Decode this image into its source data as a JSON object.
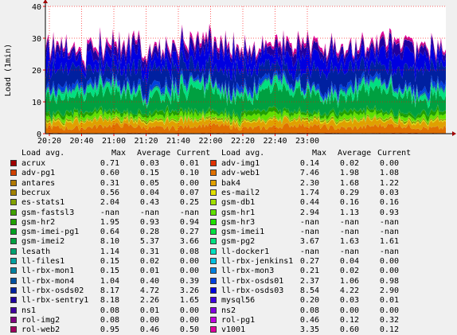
{
  "chart_data": {
    "type": "area",
    "stacked": true,
    "ylabel": "Load (1min)",
    "ylim": [
      0,
      40
    ],
    "yticks": [
      0,
      10,
      20,
      30,
      40
    ],
    "xticks": [
      "20:20",
      "20:40",
      "21:00",
      "21:20",
      "21:40",
      "22:00",
      "22:20",
      "22:40",
      "23:00"
    ],
    "grid": true,
    "legend_placement": "bottom",
    "legend_header": {
      "name": "Load avg.",
      "max": "Max",
      "avg": "Average",
      "cur": "Current"
    },
    "series": [
      {
        "name": "acrux",
        "color": "#a00000",
        "max": "0.71",
        "avg": "0.03",
        "cur": "0.01"
      },
      {
        "name": "adv-img1",
        "color": "#e03000",
        "max": "0.14",
        "avg": "0.02",
        "cur": "0.00"
      },
      {
        "name": "adv-pg1",
        "color": "#d04000",
        "max": "0.60",
        "avg": "0.15",
        "cur": "0.10"
      },
      {
        "name": "adv-web1",
        "color": "#e07000",
        "max": "7.46",
        "avg": "1.98",
        "cur": "1.08"
      },
      {
        "name": "antares",
        "color": "#b07800",
        "max": "0.31",
        "avg": "0.05",
        "cur": "0.00"
      },
      {
        "name": "bak4",
        "color": "#e0a000",
        "max": "2.30",
        "avg": "1.68",
        "cur": "1.22"
      },
      {
        "name": "becrux",
        "color": "#a08000",
        "max": "0.56",
        "avg": "0.04",
        "cur": "0.07"
      },
      {
        "name": "es-mail2",
        "color": "#e0e000",
        "max": "1.74",
        "avg": "0.29",
        "cur": "0.03"
      },
      {
        "name": "es-stats1",
        "color": "#80a000",
        "max": "2.04",
        "avg": "0.43",
        "cur": "0.25"
      },
      {
        "name": "gsm-db1",
        "color": "#a0e000",
        "max": "0.44",
        "avg": "0.16",
        "cur": "0.16"
      },
      {
        "name": "gsm-fastsl3",
        "color": "#40a000",
        "max": "-nan",
        "avg": "-nan",
        "cur": "-nan"
      },
      {
        "name": "gsm-hr1",
        "color": "#60e000",
        "max": "2.94",
        "avg": "1.13",
        "cur": "0.93"
      },
      {
        "name": "gsm-hr2",
        "color": "#20a000",
        "max": "1.95",
        "avg": "0.93",
        "cur": "0.94"
      },
      {
        "name": "gsm-hr3",
        "color": "#20e000",
        "max": "-nan",
        "avg": "-nan",
        "cur": "-nan"
      },
      {
        "name": "gsm-imei-pg1",
        "color": "#00a020",
        "max": "0.64",
        "avg": "0.28",
        "cur": "0.27"
      },
      {
        "name": "gsm-imei1",
        "color": "#00e040",
        "max": "-nan",
        "avg": "-nan",
        "cur": "-nan"
      },
      {
        "name": "gsm-imei2",
        "color": "#00a040",
        "max": "8.10",
        "avg": "5.37",
        "cur": "3.66"
      },
      {
        "name": "gsm-pg2",
        "color": "#00e080",
        "max": "3.67",
        "avg": "1.63",
        "cur": "1.61"
      },
      {
        "name": "lesath",
        "color": "#00a070",
        "max": "1.14",
        "avg": "0.31",
        "cur": "0.08"
      },
      {
        "name": "ll-docker1",
        "color": "#00e0c0",
        "max": "-nan",
        "avg": "-nan",
        "cur": "-nan"
      },
      {
        "name": "ll-files1",
        "color": "#00a0a0",
        "max": "0.15",
        "avg": "0.02",
        "cur": "0.00"
      },
      {
        "name": "ll-rbx-jenkins1",
        "color": "#00c0e0",
        "max": "0.27",
        "avg": "0.04",
        "cur": "0.00"
      },
      {
        "name": "ll-rbx-mon1",
        "color": "#0080a0",
        "max": "0.15",
        "avg": "0.01",
        "cur": "0.00"
      },
      {
        "name": "ll-rbx-mon3",
        "color": "#0080e0",
        "max": "0.21",
        "avg": "0.02",
        "cur": "0.00"
      },
      {
        "name": "ll-rbx-mon4",
        "color": "#0050a0",
        "max": "1.04",
        "avg": "0.40",
        "cur": "0.39"
      },
      {
        "name": "ll-rbx-osds01",
        "color": "#0040e0",
        "max": "2.37",
        "avg": "1.06",
        "cur": "0.98"
      },
      {
        "name": "ll-rbx-osds02",
        "color": "#0020a0",
        "max": "8.17",
        "avg": "4.72",
        "cur": "3.26"
      },
      {
        "name": "ll-rbx-osds03",
        "color": "#0000e0",
        "max": "8.54",
        "avg": "4.22",
        "cur": "2.90"
      },
      {
        "name": "ll-rbx-sentry1",
        "color": "#2000a0",
        "max": "8.18",
        "avg": "2.26",
        "cur": "1.65"
      },
      {
        "name": "mysql56",
        "color": "#4000e0",
        "max": "0.20",
        "avg": "0.03",
        "cur": "0.01"
      },
      {
        "name": "ns1",
        "color": "#4000a0",
        "max": "0.08",
        "avg": "0.01",
        "cur": "0.00"
      },
      {
        "name": "ns2",
        "color": "#8000e0",
        "max": "0.08",
        "avg": "0.00",
        "cur": "0.00"
      },
      {
        "name": "rol-img2",
        "color": "#800080",
        "max": "0.08",
        "avg": "0.00",
        "cur": "0.00"
      },
      {
        "name": "rol-pg1",
        "color": "#c000e0",
        "max": "0.46",
        "avg": "0.12",
        "cur": "0.32"
      },
      {
        "name": "rol-web2",
        "color": "#a00060",
        "max": "0.95",
        "avg": "0.46",
        "cur": "0.50"
      },
      {
        "name": "v1001",
        "color": "#e000a0",
        "max": "3.35",
        "avg": "0.60",
        "cur": "0.12"
      }
    ]
  }
}
